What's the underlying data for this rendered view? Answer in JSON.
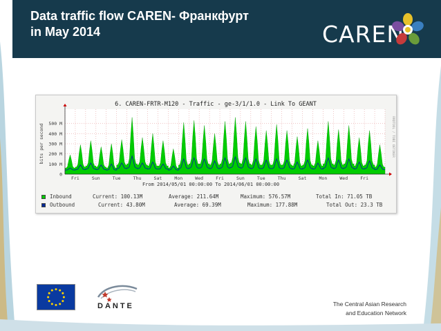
{
  "slide": {
    "title_line1": "Data traffic  flow  CAREN- Франкфурт",
    "title_line2": "in May 2014",
    "logo_text": "CAREN",
    "footer_line1": "The Central Asian Research",
    "footer_line2": "and Education Network",
    "partner_logo_text": "DANTE",
    "colors": {
      "header": "#163a4c",
      "inbound": "#00cc00",
      "outbound": "#002a97"
    }
  },
  "chart": {
    "title": "6. CAREN-FRTR-M120 - Traffic - ge-3/1/1.0  -  Link To GEANT",
    "ylabel": "bits per second",
    "side_label": "RRDTOOL / TOBI OETIKER",
    "date_range": "From 2014/05/01 00:00:00 To 2014/06/01 00:00:00",
    "legend": {
      "inbound": {
        "name": "Inbound",
        "current": "Current:  100.13M",
        "average": "Average:  211.64M",
        "maximum": "Maximum:  576.57M",
        "total": "Total In:  71.05 TB"
      },
      "outbound": {
        "name": "Outbound",
        "current": "Current:  43.80M",
        "average": "Average:  69.39M",
        "maximum": "Maximum:  177.88M",
        "total": "Total Out: 23.3 TB"
      }
    }
  },
  "chart_data": {
    "type": "area",
    "title": "6. CAREN-FRTR-M120 - Traffic - ge-3/1/1.0  -  Link To GEANT",
    "xlabel": "From 2014/05/01 00:00:00 To 2014/06/01 00:00:00",
    "ylabel": "bits per second",
    "ylim": [
      0,
      600
    ],
    "yticks": [
      {
        "value": 0,
        "label": "0"
      },
      {
        "value": 100,
        "label": "100 M"
      },
      {
        "value": 200,
        "label": "200 M"
      },
      {
        "value": 300,
        "label": "300 M"
      },
      {
        "value": 400,
        "label": "400 M"
      },
      {
        "value": 500,
        "label": "500 M"
      }
    ],
    "xticks": [
      {
        "day": 2,
        "label": "Fri"
      },
      {
        "day": 4,
        "label": "Sun"
      },
      {
        "day": 6,
        "label": "Tue"
      },
      {
        "day": 8,
        "label": "Thu"
      },
      {
        "day": 10,
        "label": "Sat"
      },
      {
        "day": 12,
        "label": "Mon"
      },
      {
        "day": 14,
        "label": "Wed"
      },
      {
        "day": 16,
        "label": "Fri"
      },
      {
        "day": 18,
        "label": "Sun"
      },
      {
        "day": 20,
        "label": "Tue"
      },
      {
        "day": 22,
        "label": "Thu"
      },
      {
        "day": 24,
        "label": "Sat"
      },
      {
        "day": 26,
        "label": "Mon"
      },
      {
        "day": 28,
        "label": "Wed"
      },
      {
        "day": 30,
        "label": "Fri"
      }
    ],
    "xlim": [
      1,
      32
    ],
    "grid": true,
    "series": [
      {
        "name": "Inbound",
        "daily_peak": [
          190,
          290,
          330,
          270,
          300,
          340,
          560,
          360,
          400,
          330,
          250,
          510,
          530,
          480,
          400,
          520,
          560,
          520,
          470,
          430,
          490,
          430,
          370,
          450,
          330,
          520,
          440,
          480,
          360,
          430,
          290
        ],
        "daily_base": [
          60,
          70,
          80,
          70,
          60,
          90,
          100,
          90,
          80,
          80,
          60,
          90,
          100,
          100,
          90,
          100,
          110,
          100,
          90,
          90,
          90,
          90,
          80,
          90,
          80,
          100,
          90,
          100,
          80,
          90,
          70
        ]
      },
      {
        "name": "Outbound",
        "daily_peak": [
          60,
          90,
          110,
          90,
          100,
          110,
          178,
          110,
          120,
          100,
          80,
          150,
          160,
          150,
          130,
          160,
          170,
          160,
          150,
          140,
          150,
          140,
          120,
          140,
          110,
          160,
          140,
          150,
          120,
          130,
          90
        ],
        "daily_base": [
          40,
          45,
          50,
          45,
          40,
          55,
          60,
          55,
          50,
          50,
          40,
          55,
          60,
          60,
          55,
          60,
          65,
          60,
          55,
          55,
          55,
          55,
          50,
          55,
          50,
          60,
          55,
          60,
          50,
          55,
          45
        ]
      }
    ]
  }
}
